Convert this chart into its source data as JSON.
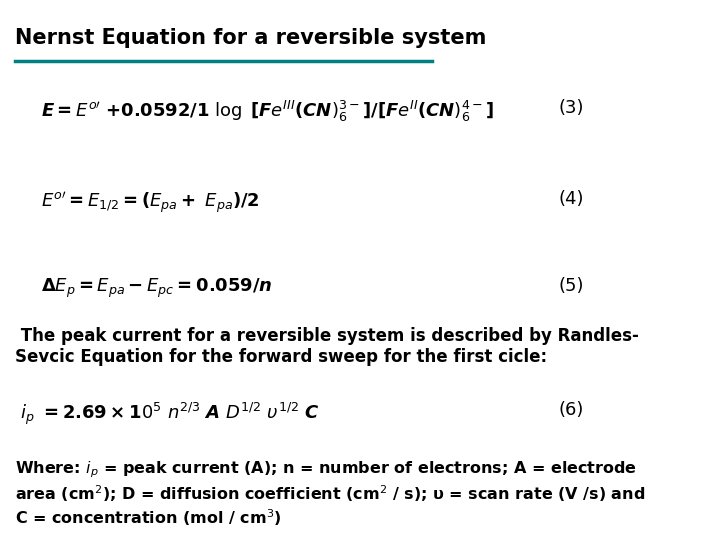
{
  "title": "Nernst Equation for a reversible system",
  "bg_color": "#ffffff",
  "title_color": "#000000",
  "title_underline_color": "#008080",
  "eq3_label": "(3)",
  "eq4_label": "(4)",
  "eq5_label": "(5)",
  "eq6_label": "(6)"
}
